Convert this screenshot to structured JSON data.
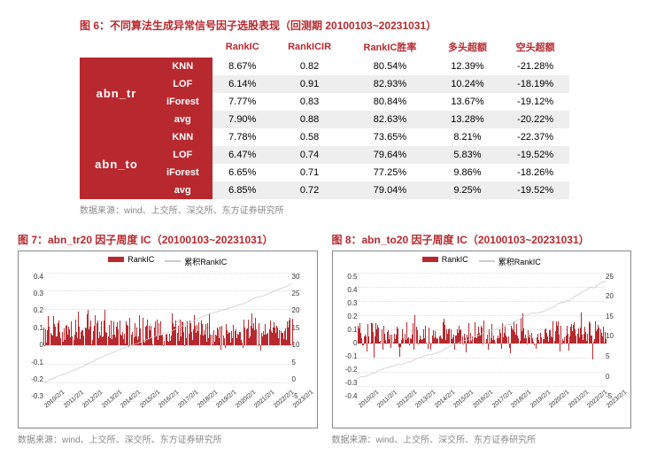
{
  "table": {
    "title": "图 6：不同算法生成异常信号因子选股表现（回测期 20100103~20231031）",
    "source": "数据来源：wind、上交所、深交所、东方证券研究所",
    "columns": [
      "RankIC",
      "RankICIR",
      "RankIC胜率",
      "多头超额",
      "空头超额"
    ],
    "header_color": "#b8292f",
    "group_bg": "#b8292f",
    "row_alt_bg": "#eeeeee",
    "groups": [
      {
        "name": "abn_tr",
        "rows": [
          {
            "alg": "KNN",
            "vals": [
              "8.67%",
              "0.82",
              "80.54%",
              "12.39%",
              "-21.28%"
            ]
          },
          {
            "alg": "LOF",
            "vals": [
              "6.14%",
              "0.91",
              "82.93%",
              "10.24%",
              "-18.19%"
            ]
          },
          {
            "alg": "iForest",
            "vals": [
              "7.77%",
              "0.83",
              "80.84%",
              "13.67%",
              "-19.12%"
            ]
          },
          {
            "alg": "avg",
            "vals": [
              "7.90%",
              "0.88",
              "82.63%",
              "13.28%",
              "-20.22%"
            ]
          }
        ]
      },
      {
        "name": "abn_to",
        "rows": [
          {
            "alg": "KNN",
            "vals": [
              "7.78%",
              "0.58",
              "73.65%",
              "8.21%",
              "-22.37%"
            ]
          },
          {
            "alg": "LOF",
            "vals": [
              "6.47%",
              "0.74",
              "79.64%",
              "5.83%",
              "-19.52%"
            ]
          },
          {
            "alg": "iForest",
            "vals": [
              "6.65%",
              "0.71",
              "77.25%",
              "9.86%",
              "-18.26%"
            ]
          },
          {
            "alg": "avg",
            "vals": [
              "6.85%",
              "0.72",
              "79.04%",
              "9.25%",
              "-19.52%"
            ]
          }
        ]
      }
    ]
  },
  "charts": [
    {
      "title": "图 7：abn_tr20 因子周度 IC（20100103~20231031）",
      "source": "数据来源：wind、上交所、深交所、东方证券研究所",
      "legend_bar": "RankIC",
      "legend_line": "累积RankIC",
      "bar_color": "#b8292f",
      "line_color": "#cccccc",
      "grid_color": "#dddddd",
      "y_left": {
        "min": -0.3,
        "max": 0.4,
        "ticks": [
          -0.3,
          -0.2,
          -0.1,
          0,
          0.1,
          0.2,
          0.3,
          0.4
        ]
      },
      "y_right": {
        "min": -5,
        "max": 30,
        "ticks": [
          -5,
          0,
          5,
          10,
          15,
          20,
          25,
          30
        ]
      },
      "x_labels": [
        "2010/2/1",
        "2011/2/1",
        "2012/2/1",
        "2013/2/1",
        "2014/2/1",
        "2015/2/1",
        "2016/2/1",
        "2017/2/1",
        "2018/2/1",
        "2019/2/1",
        "2020/2/1",
        "2021/2/1",
        "2022/2/1",
        "2023/2/1"
      ],
      "n_bars": 260,
      "bar_center": 0.078,
      "bar_spread": 0.09,
      "cum_end": 27
    },
    {
      "title": "图 8：abn_to20 因子周度 IC（20100103~20231031）",
      "source": "数据来源：wind、上交所、深交所、东方证券研究所",
      "legend_bar": "RankIC",
      "legend_line": "累积RankIC",
      "bar_color": "#b8292f",
      "line_color": "#cccccc",
      "grid_color": "#dddddd",
      "y_left": {
        "min": -0.4,
        "max": 0.5,
        "ticks": [
          -0.4,
          -0.3,
          -0.2,
          -0.1,
          0,
          0.1,
          0.2,
          0.3,
          0.4,
          0.5
        ]
      },
      "y_right": {
        "min": -5,
        "max": 25,
        "ticks": [
          -5,
          0,
          5,
          10,
          15,
          20,
          25
        ]
      },
      "x_labels": [
        "2010/2/1",
        "2011/2/1",
        "2012/2/1",
        "2013/2/1",
        "2014/2/1",
        "2015/2/1",
        "2016/2/1",
        "2017/2/1",
        "2018/2/1",
        "2019/2/1",
        "2020/2/1",
        "2021/2/1",
        "2022/2/1",
        "2023/2/1"
      ],
      "n_bars": 260,
      "bar_center": 0.068,
      "bar_spread": 0.11,
      "cum_end": 23
    }
  ]
}
